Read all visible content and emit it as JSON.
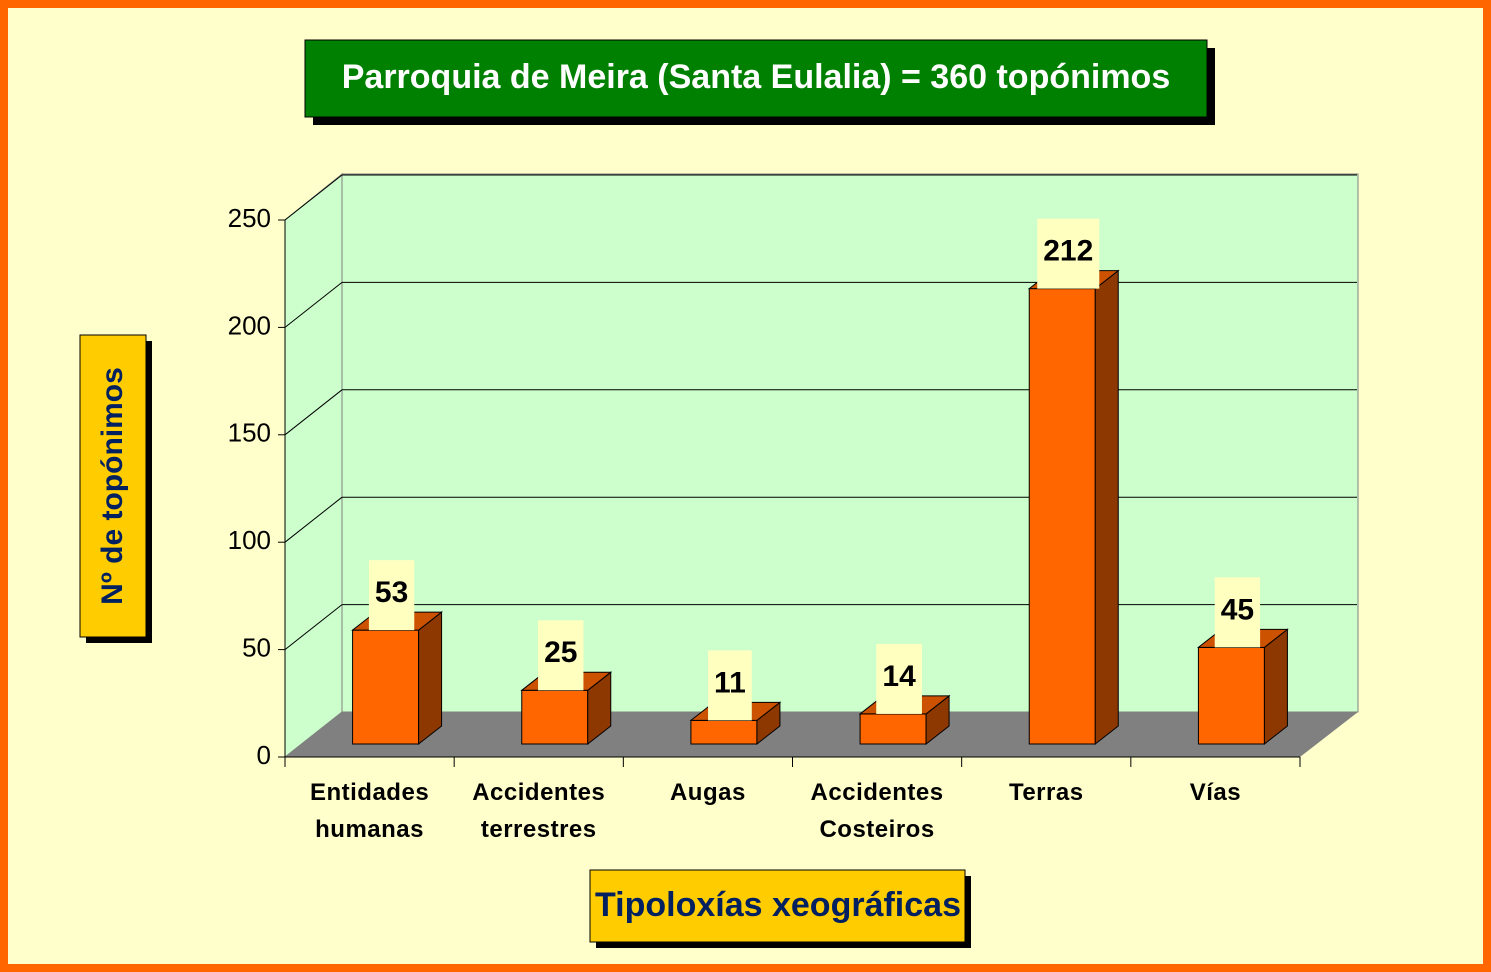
{
  "chart_data": {
    "type": "bar3d",
    "title": "Parroquia de Meira (Santa Eulalia) = 360 topónimos",
    "y_label": "Nº de topónimos",
    "x_label": "Tipoloxías xeográficas",
    "categories": [
      "Entidades humanas",
      "Accidentes terrestres",
      "Augas",
      "Accidentes Costeiros",
      "Terras",
      "Vías"
    ],
    "values": [
      53,
      25,
      11,
      14,
      212,
      45
    ],
    "color": "#ff6600",
    "ylim": [
      0,
      250
    ],
    "yticks": [
      0,
      50,
      100,
      150,
      200,
      250
    ],
    "grid": true
  }
}
